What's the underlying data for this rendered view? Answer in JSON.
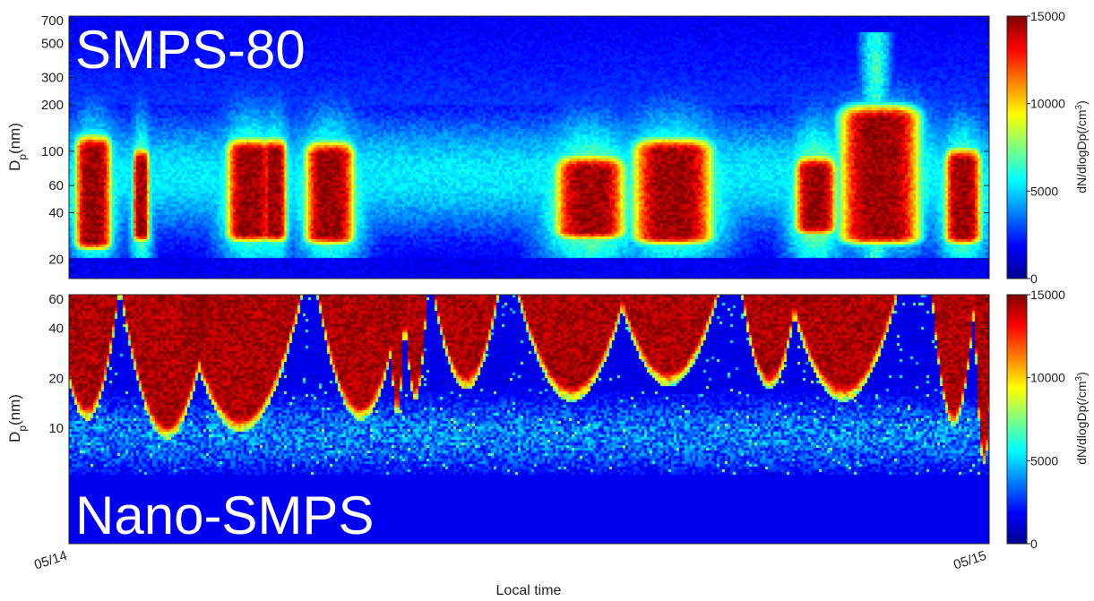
{
  "figure": {
    "xlabel": "Local time"
  },
  "chart_data": [
    {
      "type": "heatmap",
      "panel_label": "SMPS-80",
      "ylabel": "D",
      "ylabel_sub": "p",
      "ylabel_unit": "(nm)",
      "yscale": "log",
      "ylim": [
        15,
        750
      ],
      "yticks": [
        20,
        40,
        60,
        100,
        200,
        300,
        500,
        700
      ],
      "xticks": [
        "05/14",
        "05/15"
      ],
      "colorbar": {
        "label": "dN/dlogDp(/cm",
        "label_sup": "3",
        "label_end": ")",
        "min": 0,
        "max": 15000,
        "ticks": [
          0,
          5000,
          10000,
          15000
        ],
        "colormap": "jet"
      },
      "background_level": 0.1,
      "bottom_band": {
        "ymax_nm": 20,
        "level": 0.08
      },
      "plumes": [
        {
          "t": 0.025,
          "w": 0.022,
          "ylo": 24,
          "yhi": 115
        },
        {
          "t": 0.077,
          "w": 0.01,
          "ylo": 27,
          "yhi": 95
        },
        {
          "t": 0.195,
          "w": 0.028,
          "ylo": 27,
          "yhi": 110
        },
        {
          "t": 0.222,
          "w": 0.015,
          "ylo": 27,
          "yhi": 110
        },
        {
          "t": 0.282,
          "w": 0.03,
          "ylo": 26,
          "yhi": 105
        },
        {
          "t": 0.565,
          "w": 0.042,
          "ylo": 28,
          "yhi": 85
        },
        {
          "t": 0.655,
          "w": 0.048,
          "ylo": 26,
          "yhi": 110
        },
        {
          "t": 0.81,
          "w": 0.025,
          "ylo": 30,
          "yhi": 85
        },
        {
          "t": 0.88,
          "w": 0.048,
          "ylo": 26,
          "yhi": 180
        },
        {
          "t": 0.97,
          "w": 0.022,
          "ylo": 26,
          "yhi": 95
        }
      ],
      "halo_events": [
        {
          "t": 0.875,
          "w": 0.02,
          "ymax": 600
        }
      ]
    },
    {
      "type": "heatmap",
      "panel_label": "Nano-SMPS",
      "ylabel": "D",
      "ylabel_sub": "p",
      "ylabel_unit": "(nm)",
      "yscale": "log",
      "ylim": [
        2,
        64
      ],
      "yticks": [
        10,
        20,
        40,
        60
      ],
      "xticks": [
        "05/14",
        "05/15"
      ],
      "colorbar": {
        "label": "dN/dlogDp(/cm",
        "label_sup": "3",
        "label_end": ")",
        "min": 0,
        "max": 15000,
        "ticks": [
          0,
          5000,
          10000,
          15000
        ],
        "colormap": "jet"
      },
      "background_level": 0.08,
      "empty_below_nm": 5.3,
      "plumes": [
        {
          "t": 0.018,
          "w": 0.03,
          "ylo": 13
        },
        {
          "t": 0.105,
          "w": 0.04,
          "ylo": 10
        },
        {
          "t": 0.185,
          "w": 0.055,
          "ylo": 11
        },
        {
          "t": 0.315,
          "w": 0.04,
          "ylo": 13
        },
        {
          "t": 0.355,
          "w": 0.008,
          "ylo": 14
        },
        {
          "t": 0.375,
          "w": 0.012,
          "ylo": 17
        },
        {
          "t": 0.43,
          "w": 0.035,
          "ylo": 20
        },
        {
          "t": 0.545,
          "w": 0.055,
          "ylo": 17
        },
        {
          "t": 0.65,
          "w": 0.055,
          "ylo": 21
        },
        {
          "t": 0.76,
          "w": 0.03,
          "ylo": 20
        },
        {
          "t": 0.84,
          "w": 0.055,
          "ylo": 17
        },
        {
          "t": 0.96,
          "w": 0.02,
          "ylo": 12
        },
        {
          "t": 0.993,
          "w": 0.008,
          "ylo": 7
        }
      ]
    }
  ]
}
